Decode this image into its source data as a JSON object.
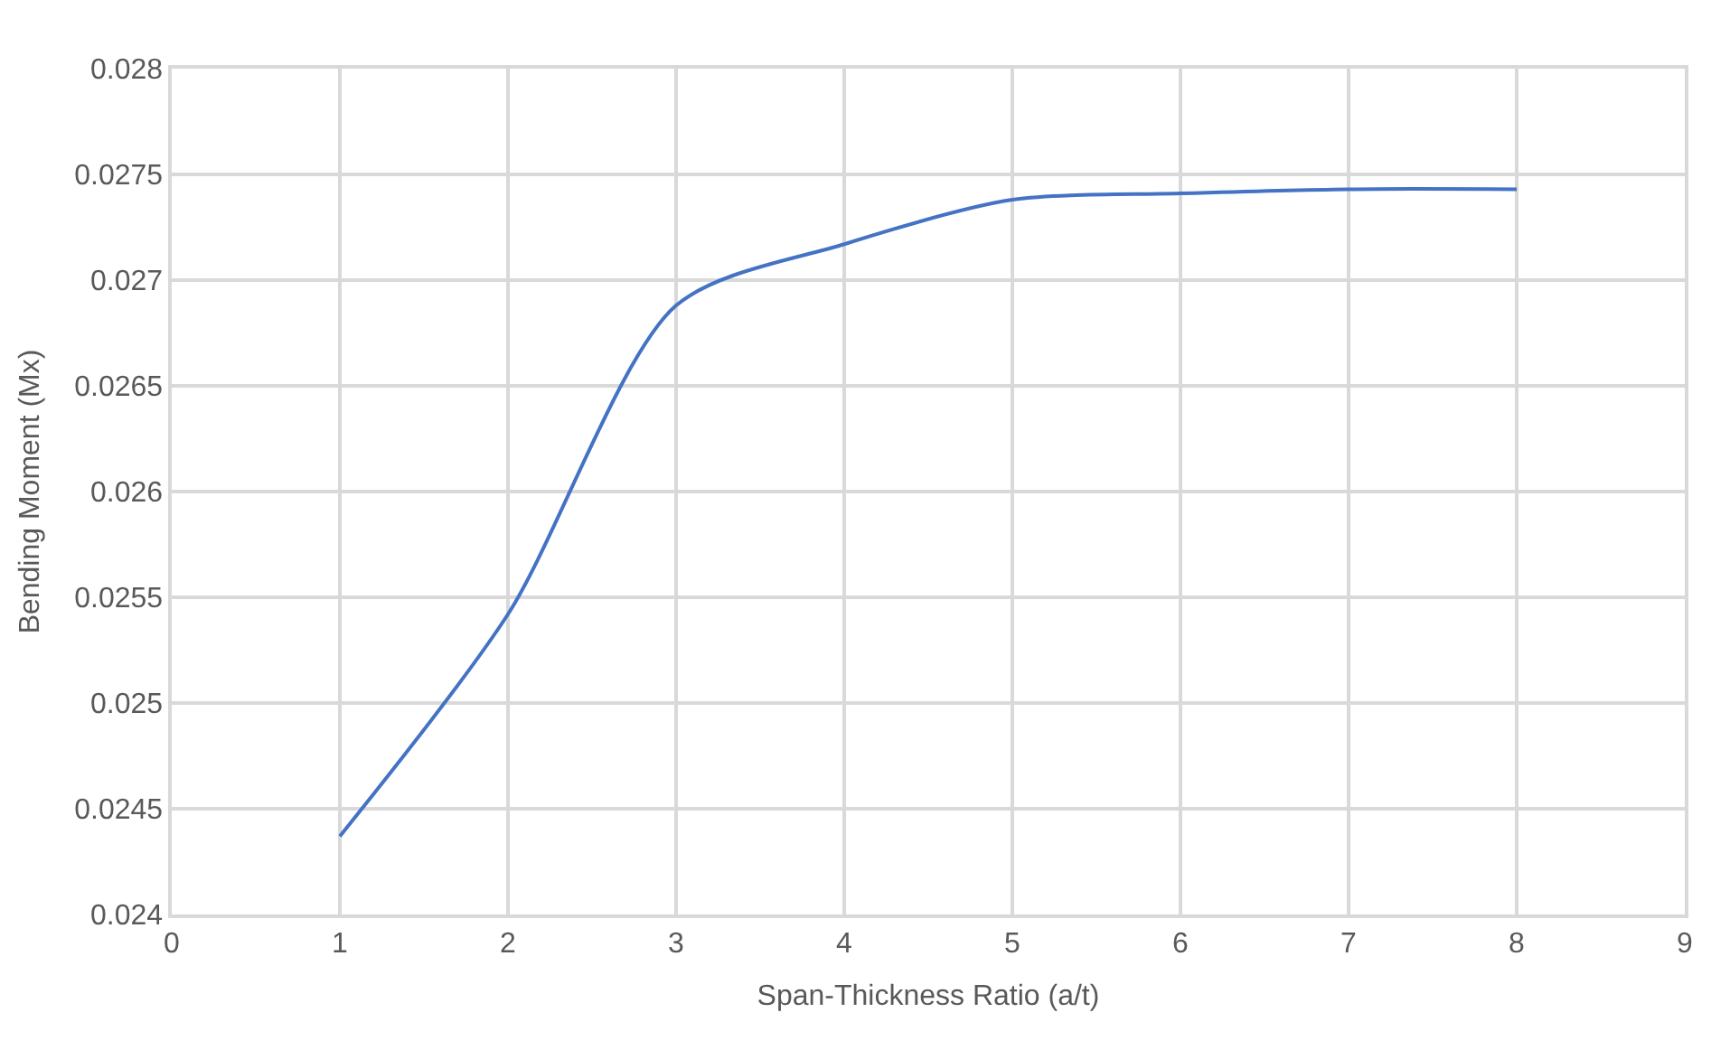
{
  "chart_data": {
    "type": "line",
    "xlabel": "Span-Thickness Ratio (a/t)",
    "ylabel": "Bending Moment (Mx)",
    "x": [
      1,
      2,
      3,
      4,
      5,
      6,
      7,
      8
    ],
    "series": [
      {
        "color": "#4472c4",
        "values": [
          0.02437,
          0.02542,
          0.02688,
          0.02717,
          0.02738,
          0.02741,
          0.02743,
          0.02743
        ]
      }
    ],
    "xlim": [
      0,
      9
    ],
    "xticks": [
      0,
      1,
      2,
      3,
      4,
      5,
      6,
      7,
      8,
      9
    ],
    "ylim": [
      0.024,
      0.028
    ],
    "yticks": [
      0.024,
      0.0245,
      0.025,
      0.0255,
      0.026,
      0.0265,
      0.027,
      0.0275,
      0.028
    ],
    "grid": true,
    "marker": "none",
    "line_style": "solid"
  }
}
